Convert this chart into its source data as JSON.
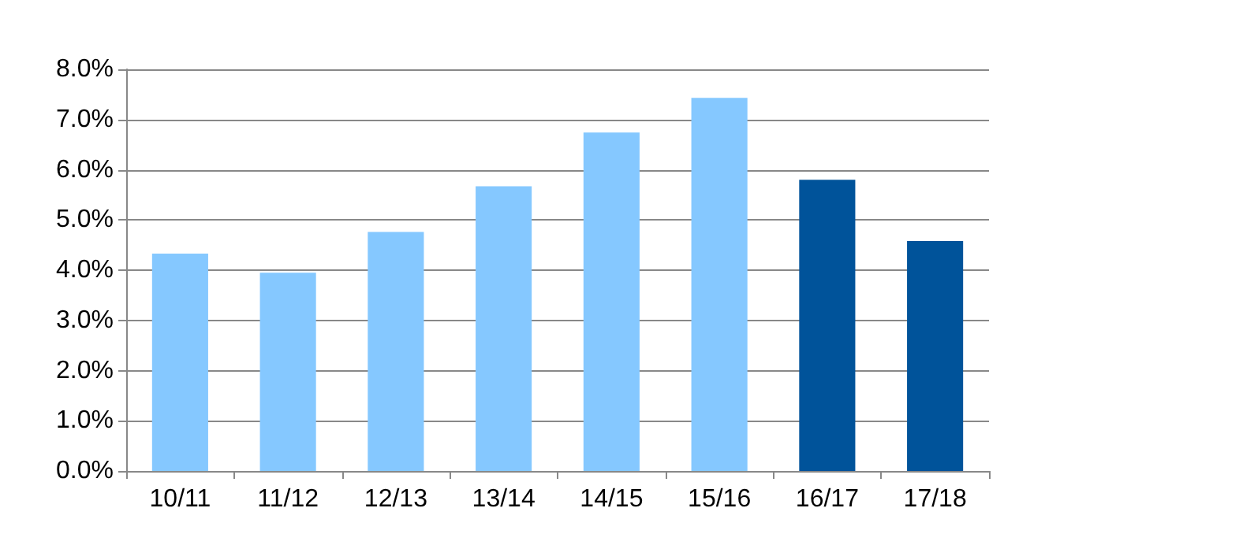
{
  "chart_data": {
    "type": "bar",
    "categories": [
      "10/11",
      "11/12",
      "12/13",
      "13/14",
      "14/15",
      "15/16",
      "16/17",
      "17/18"
    ],
    "values": [
      4.33,
      3.95,
      4.76,
      5.67,
      6.74,
      7.43,
      5.8,
      4.58
    ],
    "colors": [
      "#85c8ff",
      "#85c8ff",
      "#85c8ff",
      "#85c8ff",
      "#85c8ff",
      "#85c8ff",
      "#00539a",
      "#00539a"
    ],
    "ylim": [
      0,
      8
    ],
    "yticks": [
      {
        "value": 0,
        "label": "0.0%"
      },
      {
        "value": 1,
        "label": "1.0%"
      },
      {
        "value": 2,
        "label": "2.0%"
      },
      {
        "value": 3,
        "label": "3.0%"
      },
      {
        "value": 4,
        "label": "4.0%"
      },
      {
        "value": 5,
        "label": "5.0%"
      },
      {
        "value": 6,
        "label": "6.0%"
      },
      {
        "value": 7,
        "label": "7.0%"
      },
      {
        "value": 8,
        "label": "8.0%"
      }
    ],
    "grid": "y"
  }
}
